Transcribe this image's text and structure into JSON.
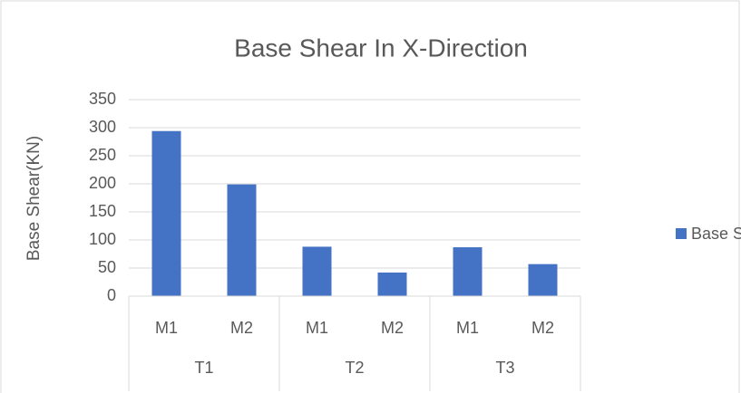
{
  "chart_data": {
    "type": "bar",
    "title": "Base Shear In X-Direction",
    "y_label": "Base Shear(KN)",
    "categories": [
      "M1",
      "M2",
      "M1",
      "M2",
      "M1",
      "M2"
    ],
    "groups": [
      "T1",
      "T2",
      "T3"
    ],
    "series": [
      {
        "name": "Base Shear",
        "color": "#4472c4",
        "values": [
          294,
          199,
          88,
          42,
          87,
          57
        ]
      }
    ],
    "ylim": [
      0,
      350
    ],
    "yticks": [
      0,
      50,
      100,
      150,
      200,
      250,
      300,
      350
    ],
    "grid": true,
    "legend": "right"
  }
}
